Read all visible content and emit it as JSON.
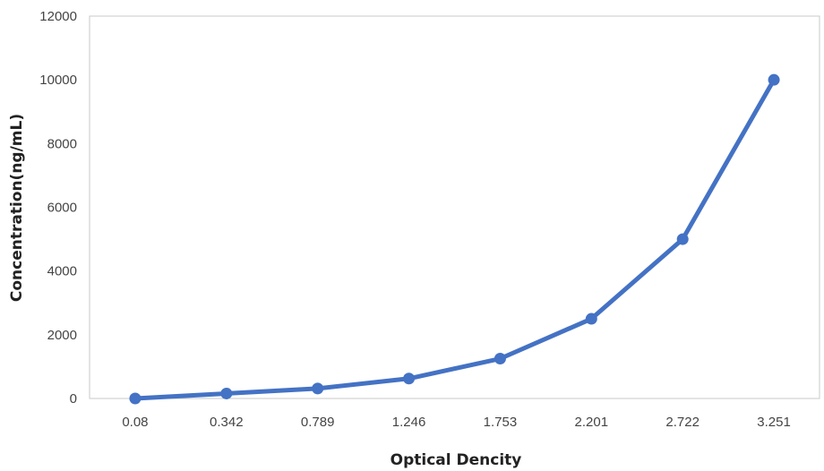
{
  "chart_data": {
    "type": "line",
    "title": "",
    "xlabel": "Optical Dencity",
    "ylabel": "Concentration(ng/mL)",
    "categories": [
      "0.08",
      "0.342",
      "0.789",
      "1.246",
      "1.753",
      "2.201",
      "2.722",
      "3.251"
    ],
    "series": [
      {
        "values": [
          0,
          156,
          312,
          625,
          1250,
          2500,
          5000,
          10000
        ]
      }
    ],
    "ylim": [
      0,
      12000
    ],
    "yticks": [
      "0",
      "2000",
      "4000",
      "6000",
      "8000",
      "10000",
      "12000"
    ],
    "grid": false,
    "legend": "none",
    "color": "#4472C4"
  }
}
